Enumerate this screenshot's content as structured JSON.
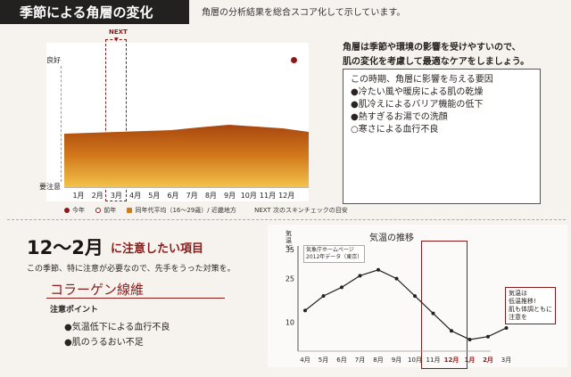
{
  "header": {
    "title": "季節による角層の変化",
    "subtitle": "角層の分析結果を総合スコア化して示しています。"
  },
  "score_chart": {
    "next_label": "NEXT",
    "y_top": "良好",
    "y_bottom": "要注意",
    "months": [
      "1月",
      "2月",
      "3月",
      "4月",
      "5月",
      "6月",
      "7月",
      "8月",
      "9月",
      "10月",
      "11月",
      "12月"
    ],
    "legend": {
      "current": "今年",
      "previous": "前年",
      "average": "同年代平均（16～29歳）/ 近畿地方",
      "next": "NEXT 次のスキンチェックの目安"
    },
    "colors": {
      "fill_top": "#a8460f",
      "fill_bottom": "#f0b832",
      "accent": "#8a1a1a"
    }
  },
  "advice": {
    "line1": "角層は季節や環境の影響を受けやすいので、",
    "line2": "肌の変化を考慮して最適なケアをしましょう。",
    "box_title": "この時期、角層に影響を与える要因",
    "items": [
      "●冷たい風や暖房による肌の乾燥",
      "●肌冷えによるバリア機能の低下",
      "●熱すぎるお湯での洗顔",
      "○寒さによる血行不良"
    ]
  },
  "focus": {
    "period": "12～2月",
    "period_suffix": "に注意したい項目",
    "intro": "この季節、特に注意が必要なので、先手をうった対策を。",
    "topic": "コラーゲン線維",
    "points_title": "注意ポイント",
    "points": [
      "●気温低下による血行不良",
      "●肌のうるおい不足"
    ]
  },
  "chart_data": {
    "type": "line",
    "title": "気温の推移",
    "ylabel": "気温 ℃",
    "source": [
      "気象庁ホームページ",
      "2012年データ（東京）"
    ],
    "categories": [
      "4月",
      "5月",
      "6月",
      "7月",
      "8月",
      "9月",
      "10月",
      "11月",
      "12月",
      "1月",
      "2月",
      "3月"
    ],
    "values": [
      14,
      19,
      22,
      26,
      28,
      25,
      19,
      13,
      7,
      4,
      5,
      8
    ],
    "ylim": [
      0,
      35
    ],
    "yticks": [
      10,
      25,
      35
    ],
    "highlight": [
      "12月",
      "1月",
      "2月"
    ],
    "annotation": [
      "気温は",
      "低温推移!",
      "肌も体調ともに",
      "注意を"
    ]
  }
}
